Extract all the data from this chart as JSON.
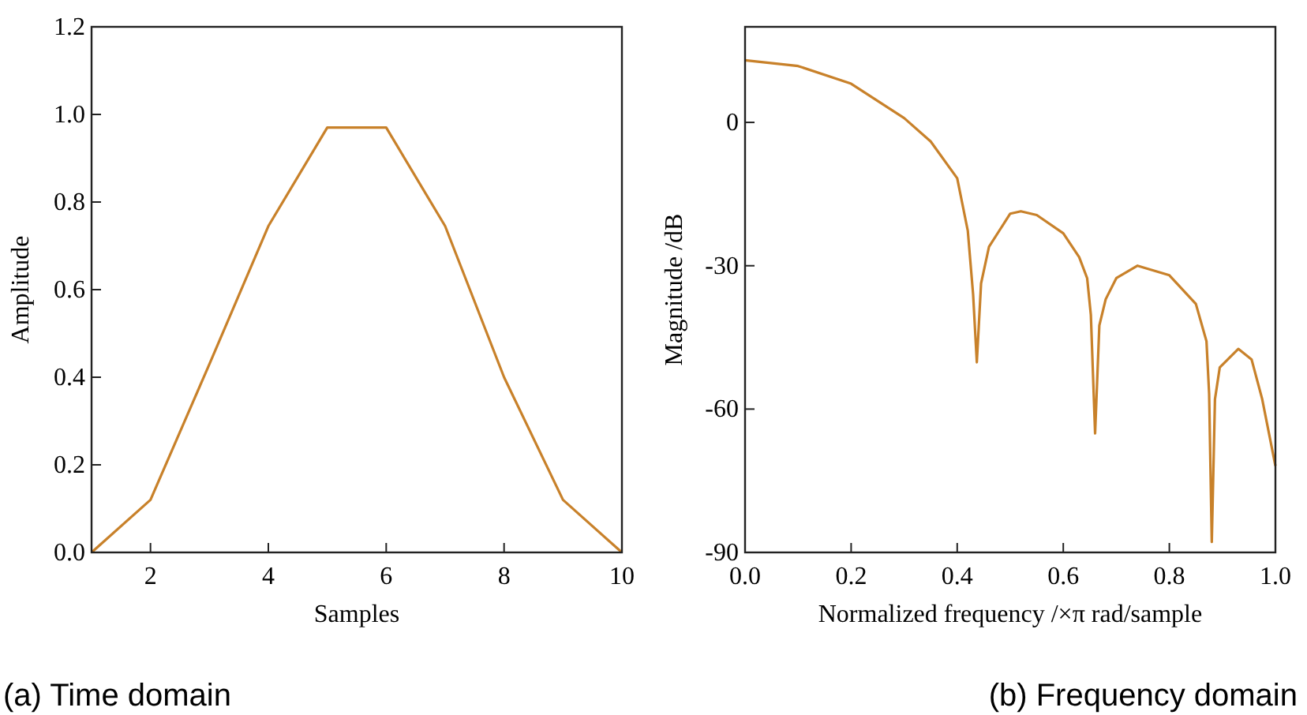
{
  "chart_data": [
    {
      "type": "line",
      "xlabel": "Samples",
      "ylabel": "Amplitude",
      "x": [
        1,
        2,
        3,
        4,
        5,
        6,
        7,
        8,
        9,
        10
      ],
      "series": [
        {
          "color": "#c8812a",
          "values": [
            0,
            0.12,
            0.43,
            0.745,
            0.97,
            0.97,
            0.745,
            0.4,
            0.12,
            0
          ]
        }
      ],
      "xlim": [
        1,
        10
      ],
      "xticks": [
        2,
        4,
        6,
        8,
        10
      ],
      "ylim": [
        0,
        1.2
      ],
      "yticks": [
        {
          "value": 0,
          "label": "0.0"
        },
        0.2,
        0.4,
        0.6,
        0.8,
        {
          "value": 1,
          "label": "1.0"
        },
        1.2
      ],
      "grid": false,
      "marker": "none",
      "line_style": "solid",
      "annotations": [
        "(a) Time domain"
      ]
    },
    {
      "type": "line",
      "xlabel": "Normalized frequency /×π rad/sample",
      "ylabel": "Magnitude /dB",
      "x": [
        0,
        0.1,
        0.2,
        0.3,
        0.35,
        0.4,
        0.42,
        0.43,
        0.437,
        0.445,
        0.46,
        0.5,
        0.52,
        0.55,
        0.6,
        0.63,
        0.645,
        0.652,
        0.66,
        0.668,
        0.68,
        0.7,
        0.74,
        0.8,
        0.85,
        0.87,
        0.875,
        0.88,
        0.886,
        0.895,
        0.93,
        0.955,
        0.975,
        1.0
      ],
      "series": [
        {
          "color": "#c8812a",
          "values": [
            13,
            11.8,
            8.1,
            0.9,
            -4,
            -11.7,
            -22.7,
            -36,
            -50.2,
            -33.7,
            -26,
            -19.1,
            -18.6,
            -19.4,
            -23.2,
            -28.2,
            -32.6,
            -40.3,
            -65.1,
            -42.5,
            -37,
            -32.6,
            -30,
            -32,
            -38,
            -45.8,
            -56.8,
            -87.8,
            -57.9,
            -51.3,
            -47.4,
            -49.6,
            -57.9,
            -71.9
          ]
        }
      ],
      "xlim": [
        0,
        1
      ],
      "xticks": [
        {
          "value": 0,
          "label": "0.0"
        },
        0.2,
        0.4,
        0.6,
        0.8,
        {
          "value": 1,
          "label": "1.0"
        }
      ],
      "ylim": [
        -90,
        20
      ],
      "yticks": [
        -90,
        -60,
        -30,
        0
      ],
      "grid": false,
      "marker": "none",
      "line_style": "solid",
      "annotations": [
        "(b) Frequency domain"
      ]
    }
  ]
}
